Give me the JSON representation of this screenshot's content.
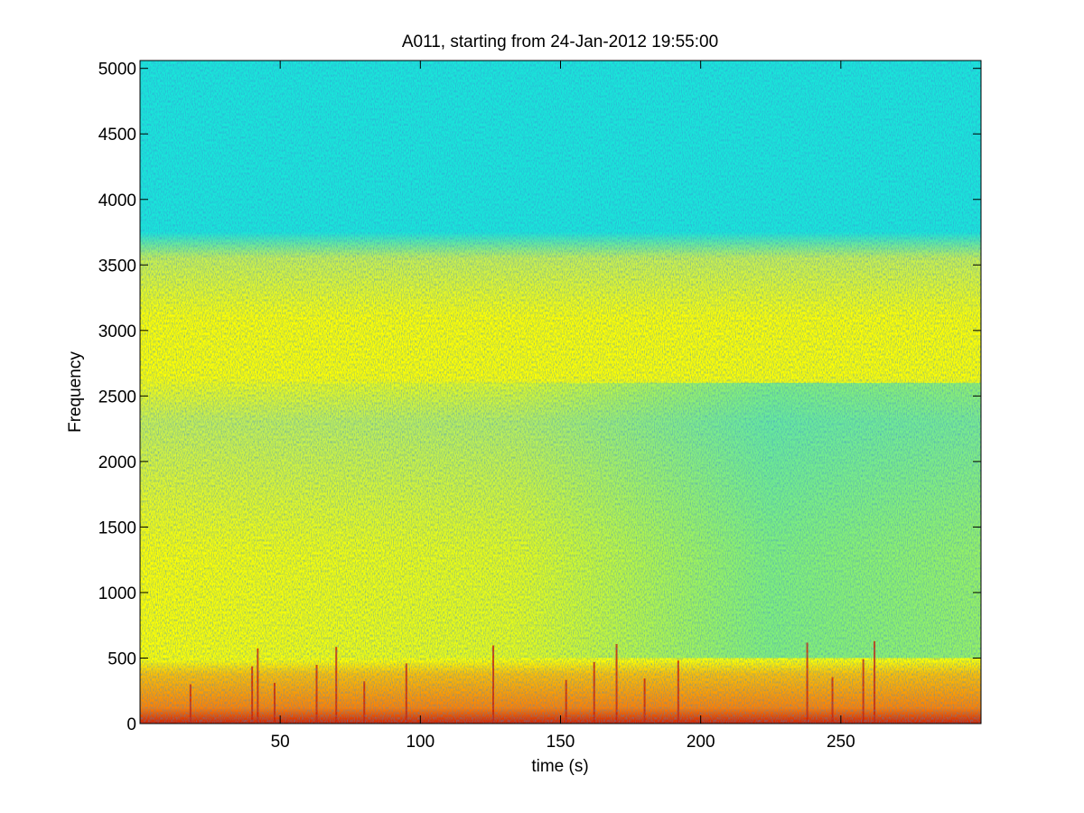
{
  "chart_data": {
    "type": "heatmap",
    "title": "A011, starting from 24-Jan-2012 19:55:00",
    "xlabel": "time (s)",
    "ylabel": "Frequency",
    "xlim": [
      0,
      300
    ],
    "ylim": [
      0,
      5060
    ],
    "x_ticks": [
      50,
      100,
      150,
      200,
      250
    ],
    "y_ticks": [
      0,
      500,
      1000,
      1500,
      2000,
      2500,
      3000,
      3500,
      4000,
      4500,
      5000
    ],
    "colormap": "jet",
    "colors": {
      "low": "#19e6d9",
      "mid": "#c8f050",
      "high": "#ffff00",
      "peak": "#d02000"
    },
    "bands": [
      {
        "freq_min": 3700,
        "freq_max": 5060,
        "level": "low"
      },
      {
        "freq_min": 3000,
        "freq_max": 3700,
        "level": "mid"
      },
      {
        "freq_min": 2600,
        "freq_max": 3000,
        "level": "high"
      },
      {
        "freq_min": 500,
        "freq_max": 2600,
        "level": "high-to-mid, fading with time"
      },
      {
        "freq_min": 0,
        "freq_max": 500,
        "level": "peak near 0 Hz"
      }
    ],
    "transients_s": [
      18,
      40,
      42,
      48,
      63,
      70,
      80,
      95,
      126,
      152,
      162,
      170,
      180,
      192,
      238,
      247,
      258,
      262
    ],
    "grid": false,
    "legend": "none"
  }
}
